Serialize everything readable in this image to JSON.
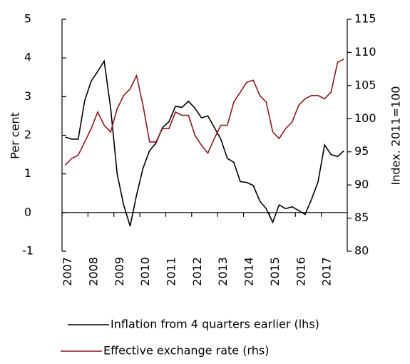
{
  "chart_data": {
    "type": "line",
    "y_label": "Per cent",
    "y2_label": "Index. 2011=100",
    "categories": [
      "2007",
      null,
      null,
      null,
      "2008",
      null,
      null,
      null,
      "2009",
      null,
      null,
      null,
      "2010",
      null,
      null,
      null,
      "2011",
      null,
      null,
      null,
      "2012",
      null,
      null,
      null,
      "2013",
      null,
      null,
      null,
      "2014",
      null,
      null,
      null,
      "2015",
      null,
      null,
      null,
      "2016",
      null,
      null,
      null,
      "2017",
      null,
      null,
      null
    ],
    "series": [
      {
        "name": "Inflation from 4 quarters earlier (lhs)",
        "color": "#000000",
        "axis": "y",
        "values": [
          1.95,
          1.9,
          1.9,
          2.9,
          3.4,
          3.65,
          3.92,
          2.7,
          1.0,
          0.2,
          -0.35,
          0.45,
          1.15,
          1.6,
          1.8,
          2.2,
          2.35,
          2.75,
          2.72,
          2.88,
          2.7,
          2.45,
          2.5,
          2.2,
          1.9,
          1.4,
          1.3,
          0.8,
          0.78,
          0.7,
          0.3,
          0.1,
          -0.25,
          0.2,
          0.1,
          0.15,
          0.05,
          -0.05,
          0.35,
          0.8,
          1.75,
          1.5,
          1.45,
          1.6
        ]
      },
      {
        "name": "Effective exchange rate (rhs)",
        "color": "#8b1a1a",
        "axis": "y2",
        "values": [
          93,
          94,
          94.5,
          96.5,
          98.5,
          101,
          99,
          98,
          101.5,
          103.5,
          104.5,
          106.5,
          102,
          96.5,
          96.5,
          98.5,
          98.5,
          101,
          100.5,
          100.5,
          97.5,
          96,
          94.8,
          97,
          99,
          99,
          102.5,
          104,
          105.5,
          105.8,
          103.5,
          102.5,
          98,
          97,
          98.5,
          99.5,
          102,
          103,
          103.5,
          103.5,
          103,
          104,
          108.5,
          109
        ]
      }
    ],
    "ylim": [
      -1,
      5
    ],
    "yticks": [
      -1,
      0,
      1,
      2,
      3,
      4,
      5
    ],
    "y2lim": [
      80,
      115
    ],
    "y2ticks": [
      80,
      85,
      90,
      95,
      100,
      105,
      110,
      115
    ]
  }
}
